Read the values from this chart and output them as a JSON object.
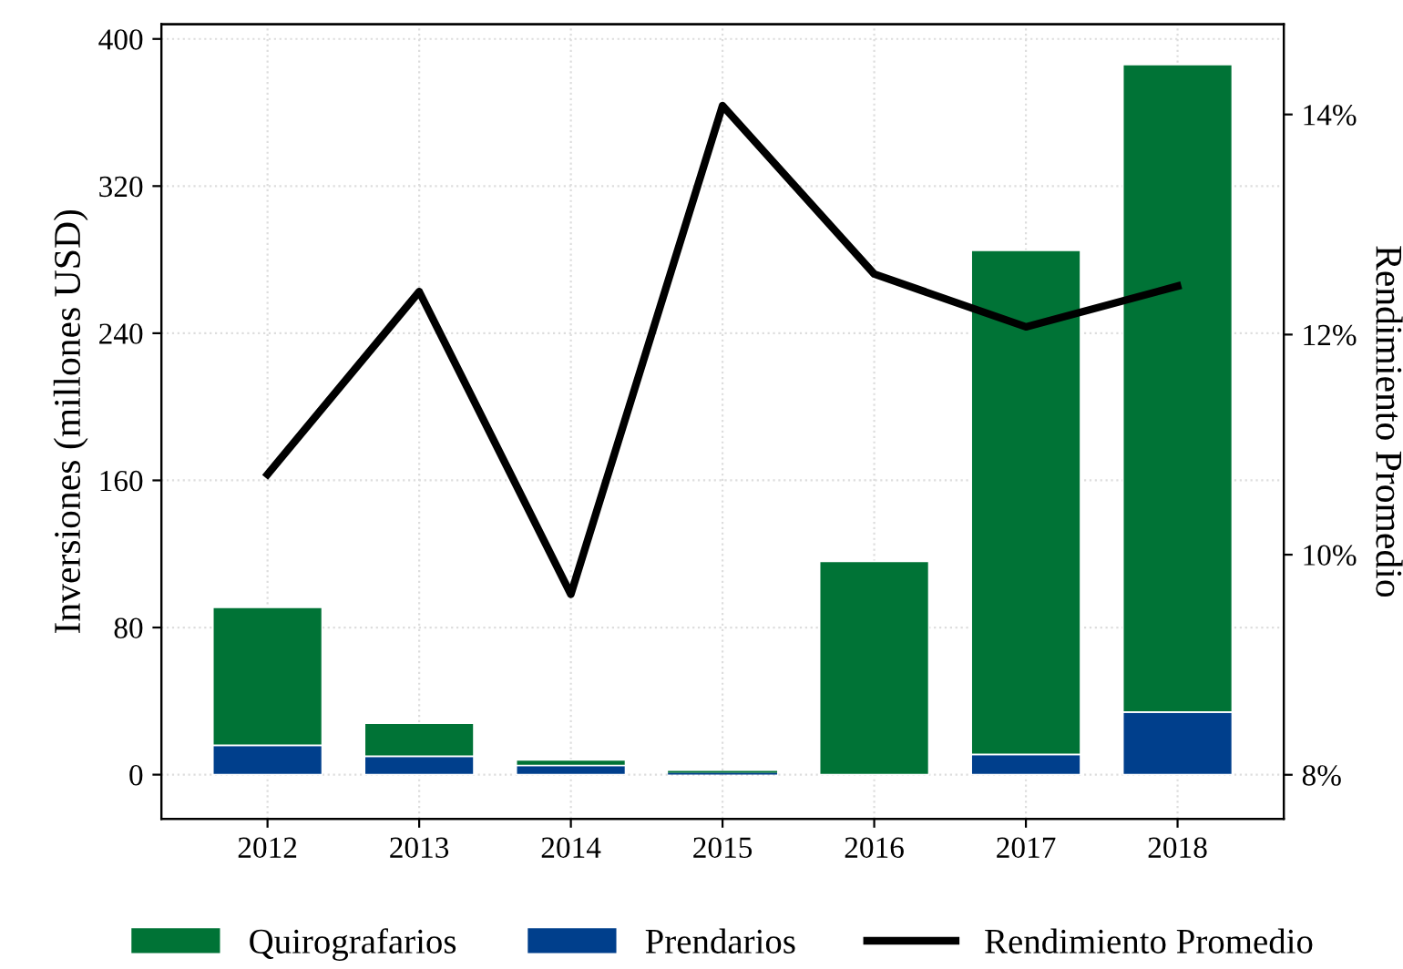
{
  "chart_data": {
    "type": "bar",
    "stacked": true,
    "categories": [
      "2012",
      "2013",
      "2014",
      "2015",
      "2016",
      "2017",
      "2018"
    ],
    "series": [
      {
        "name": "Prendarios",
        "color": "#003f8c",
        "values": [
          16,
          10,
          5,
          1,
          0,
          11,
          34
        ]
      },
      {
        "name": "Quirografarios",
        "color": "#007336",
        "values": [
          75,
          18,
          3,
          1,
          116,
          274,
          352
        ]
      },
      {
        "name": "Rendimiento Promedio",
        "type": "line",
        "axis": "y2",
        "color": "#000000",
        "values": [
          10.73,
          12.39,
          9.64,
          14.08,
          12.55,
          12.07,
          12.44
        ]
      }
    ],
    "ylabel": "Inversiones (millones USD)",
    "y2label": "Rendimiento Promedio",
    "ylim": [
      -24,
      408
    ],
    "yticks": [
      0,
      80,
      160,
      240,
      320,
      400
    ],
    "y2lim": [
      7.6,
      14.82
    ],
    "y2ticks": [
      {
        "value": 8,
        "label": "8%"
      },
      {
        "value": 10,
        "label": "10%"
      },
      {
        "value": 12,
        "label": "12%"
      },
      {
        "value": 14,
        "label": "14%"
      }
    ],
    "grid": true,
    "legend": "bottom",
    "line_style": "solid",
    "marker": "none"
  }
}
